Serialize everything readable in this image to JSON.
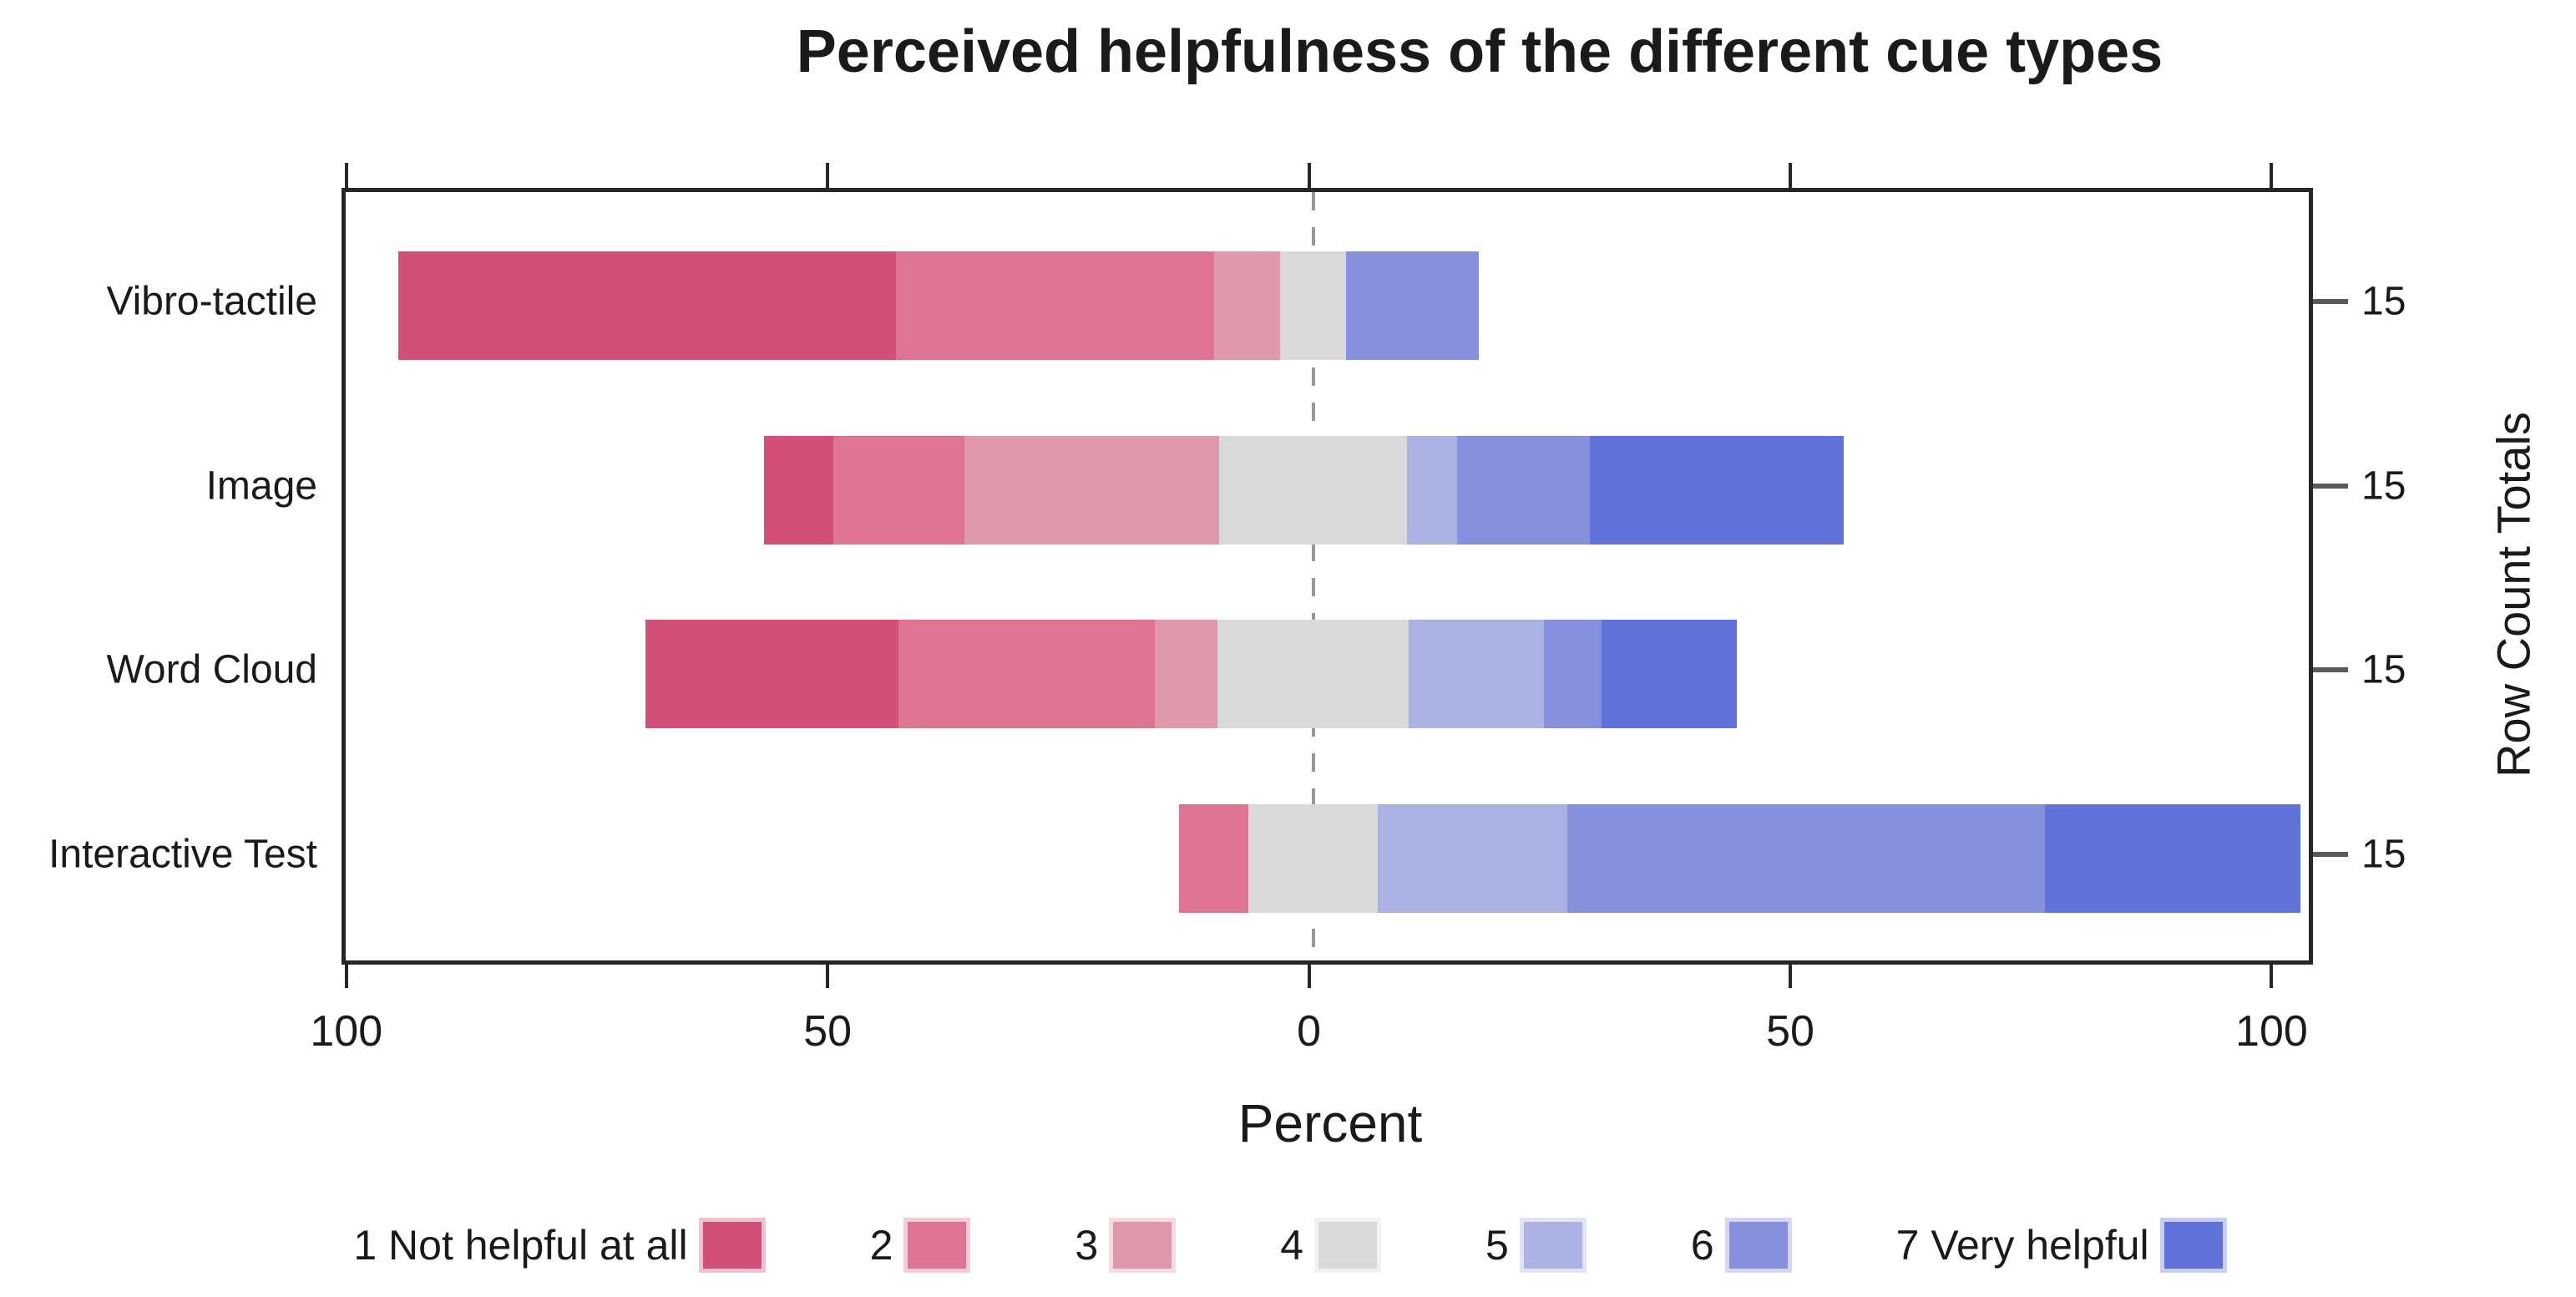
{
  "title": "Perceived helpfulness of the different cue types",
  "chart_data": {
    "type": "bar",
    "subtype": "diverging-stacked-likert",
    "title": "Perceived helpfulness of the different cue types",
    "xlabel": "Percent",
    "right_axis_label": "Row Count Totals",
    "legend_position": "bottom",
    "grid": false,
    "xlim": [
      -100.5,
      104.3
    ],
    "x_ticks": [
      -100,
      -50,
      0,
      50,
      100
    ],
    "x_tick_labels": [
      "100",
      "50",
      "0",
      "50",
      "100"
    ],
    "neutral_level": "4",
    "zero_line_color": "#979797",
    "categories": [
      "Vibro-tactile",
      "Image",
      "Word Cloud",
      "Interactive Test"
    ],
    "row_count_totals": [
      15,
      15,
      15,
      15
    ],
    "levels": [
      {
        "value": "1",
        "label": "1 Not helpful at all",
        "color": "#d25078"
      },
      {
        "value": "2",
        "label": "2",
        "color": "#dd7492"
      },
      {
        "value": "3",
        "label": "3",
        "color": "#e099ab"
      },
      {
        "value": "4",
        "label": "4",
        "color": "#d9d9d9"
      },
      {
        "value": "5",
        "label": "5",
        "color": "#a9b2e0"
      },
      {
        "value": "6",
        "label": "6",
        "color": "#8790df"
      },
      {
        "value": "7",
        "label": "7 Very helpful",
        "color": "#6072dc"
      }
    ],
    "rows": [
      {
        "category": "Vibro-tactile",
        "total": 15,
        "percent": {
          "1": 51.7,
          "2": 33.1,
          "3": 6.8,
          "4": 6.9,
          "5": 0,
          "6": 13.8,
          "7": 0
        }
      },
      {
        "category": "Image",
        "total": 15,
        "percent": {
          "1": 7.2,
          "2": 13.6,
          "3": 26.5,
          "4": 19.5,
          "5": 5.2,
          "6": 13.8,
          "7": 26.4
        }
      },
      {
        "category": "Word Cloud",
        "total": 15,
        "percent": {
          "1": 26.3,
          "2": 26.6,
          "3": 6.5,
          "4": 19.9,
          "5": 14.0,
          "6": 6.0,
          "7": 14.1
        }
      },
      {
        "category": "Interactive Test",
        "total": 15,
        "percent": {
          "1": 0,
          "2": 7.2,
          "3": 0,
          "4": 13.5,
          "5": 19.7,
          "6": 49.6,
          "7": 26.5
        }
      }
    ]
  }
}
